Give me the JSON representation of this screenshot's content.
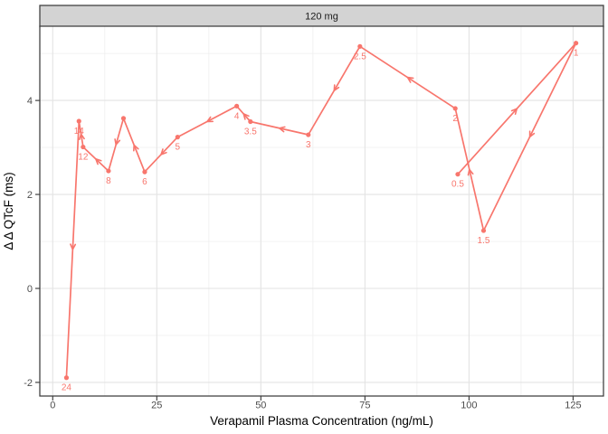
{
  "chart_data": {
    "type": "line",
    "facet_title": "120 mg",
    "xlabel": "Verapamil Plasma Concentration (ng/mL)",
    "ylabel": "Δ Δ QTcF (ms)",
    "series_color": "#F8766D",
    "panel_bg": "#ffffff",
    "strip_bg": "#D3D3D3",
    "border_color": "#3c3c3c",
    "grid_major_color": "#E3E3E3",
    "grid_minor_color": "#F0F0F0",
    "xlim": [
      -3.1,
      132.3
    ],
    "ylim": [
      -2.29,
      5.58
    ],
    "x_ticks": [
      0,
      25,
      50,
      75,
      100,
      125
    ],
    "y_ticks": [
      -2,
      0,
      2,
      4
    ],
    "x_minor": [
      12.5,
      37.5,
      62.5,
      87.5,
      112.5
    ],
    "y_minor": [
      -1,
      1,
      3,
      5
    ],
    "legend": "none",
    "arrows": "direction-of-time at segment midpoints",
    "points_in_time_order": [
      {
        "label": "0.5",
        "x": 97.3,
        "y": 2.43
      },
      {
        "label": "1",
        "x": 125.7,
        "y": 5.22
      },
      {
        "label": "1.5",
        "x": 103.5,
        "y": 1.23
      },
      {
        "label": "2",
        "x": 96.7,
        "y": 3.83
      },
      {
        "label": "2.5",
        "x": 73.8,
        "y": 5.15
      },
      {
        "label": "3",
        "x": 61.4,
        "y": 3.27
      },
      {
        "label": "3.5",
        "x": 47.5,
        "y": 3.55
      },
      {
        "label": "4",
        "x": 44.2,
        "y": 3.88
      },
      {
        "label": "5",
        "x": 30.0,
        "y": 3.22
      },
      {
        "label": "6",
        "x": 22.1,
        "y": 2.48
      },
      {
        "label": "",
        "x": 17.0,
        "y": 3.62
      },
      {
        "label": "8",
        "x": 13.4,
        "y": 2.5
      },
      {
        "label": "12",
        "x": 7.3,
        "y": 3.01
      },
      {
        "label": "14",
        "x": 6.3,
        "y": 3.56
      },
      {
        "label": "24",
        "x": 3.3,
        "y": -1.9
      }
    ]
  }
}
